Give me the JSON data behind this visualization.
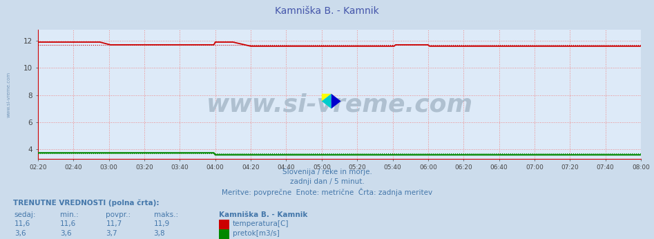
{
  "title": "Kamniška B. - Kamnik",
  "title_color": "#4455aa",
  "bg_color": "#ccdcec",
  "plot_bg_color": "#ddeaf8",
  "grid_color": "#ee8888",
  "xmin": 0,
  "xmax": 408,
  "ymin": 3.3,
  "ymax": 12.8,
  "yticks": [
    4,
    6,
    8,
    10,
    12
  ],
  "xtick_labels": [
    "02:20",
    "02:40",
    "03:00",
    "03:20",
    "03:40",
    "04:00",
    "04:20",
    "04:40",
    "05:00",
    "05:20",
    "05:40",
    "06:00",
    "06:20",
    "06:40",
    "07:00",
    "07:20",
    "07:40",
    "08:00"
  ],
  "xtick_positions": [
    0,
    24,
    48,
    72,
    96,
    120,
    144,
    168,
    192,
    216,
    240,
    264,
    288,
    312,
    336,
    360,
    384,
    408
  ],
  "temp_color": "#cc0000",
  "flow_color": "#008800",
  "watermark": "www.si-vreme.com",
  "watermark_color": "#aabccc",
  "subtitle1": "Slovenija / reke in morje.",
  "subtitle2": "zadnji dan / 5 minut.",
  "subtitle3": "Meritve: povprečne  Enote: metrične  Črta: zadnja meritev",
  "subtitle_color": "#4477aa",
  "table_header": "TRENUTNE VREDNOSTI (polna črta):",
  "col_headers": [
    "sedaj:",
    "min.:",
    "povpr.:",
    "maks.:"
  ],
  "station_name": "Kamniška B. - Kamnik",
  "temp_row": [
    "11,6",
    "11,6",
    "11,7",
    "11,9"
  ],
  "flow_row": [
    "3,6",
    "3,6",
    "3,7",
    "3,8"
  ],
  "temp_label": "temperatura[C]",
  "flow_label": "pretok[m3/s]",
  "left_label": "www.si-vreme.com",
  "left_label_color": "#7799bb",
  "axis_color": "#cc0000",
  "tick_color": "#444444",
  "n_points": 420,
  "temp_base": 11.6,
  "temp_avg": 11.7,
  "flow_base": 3.6,
  "flow_avg": 3.7
}
